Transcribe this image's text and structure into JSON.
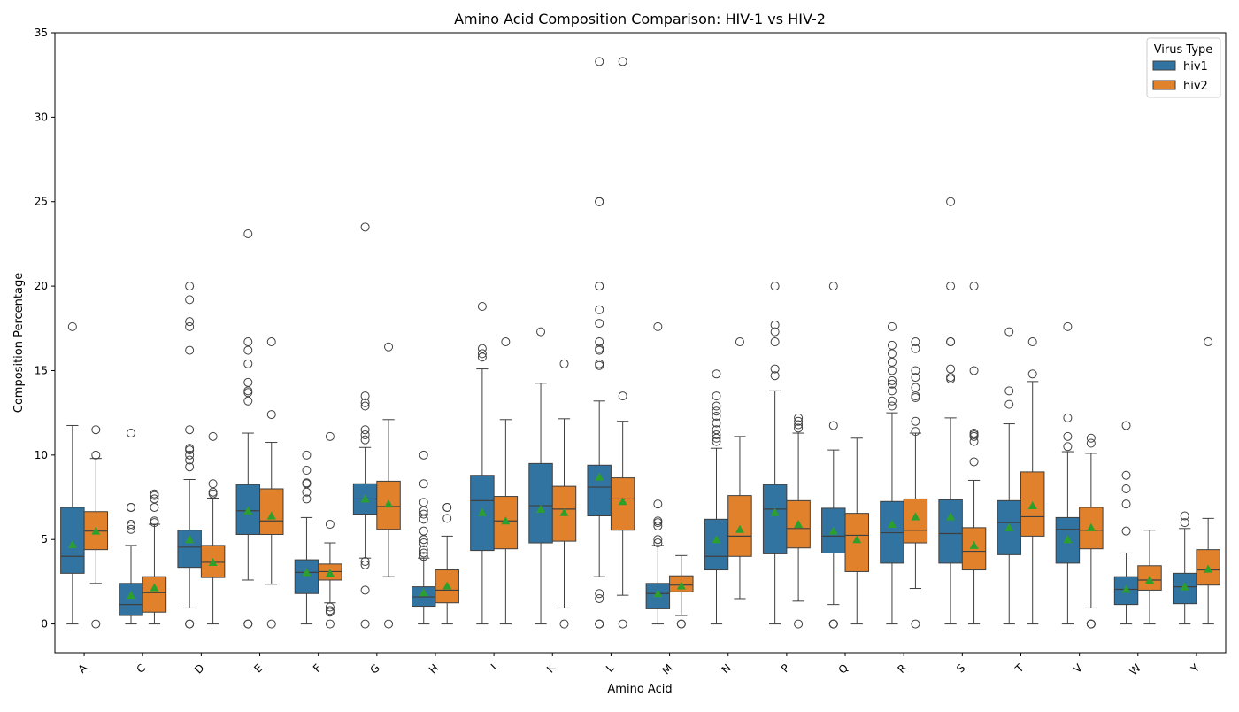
{
  "chart_data": {
    "type": "box",
    "title": "Amino Acid Composition Comparison: HIV-1 vs HIV-2",
    "xlabel": "Amino Acid",
    "ylabel": "Composition Percentage",
    "ylim": [
      -1.7,
      35
    ],
    "yticks": [
      0,
      5,
      10,
      15,
      20,
      25,
      30,
      35
    ],
    "grid": false,
    "legend": {
      "title": "Virus Type",
      "placement": "top-right"
    },
    "mean_marker": {
      "shape": "triangle",
      "color": "#2ca02c"
    },
    "stat_order": [
      "whisker_low",
      "q1",
      "median",
      "q3",
      "whisker_high",
      "mean",
      "outliers"
    ],
    "series": [
      {
        "name": "hiv1",
        "color": "#3274a1"
      },
      {
        "name": "hiv2",
        "color": "#e1812c"
      }
    ],
    "categories": [
      "A",
      "C",
      "D",
      "E",
      "F",
      "G",
      "H",
      "I",
      "K",
      "L",
      "M",
      "N",
      "P",
      "Q",
      "R",
      "S",
      "T",
      "V",
      "W",
      "Y"
    ],
    "stats": {
      "A": [
        [
          0,
          3.0,
          4.0,
          6.9,
          11.75,
          4.7,
          [
            17.6
          ]
        ],
        [
          2.4,
          4.4,
          5.5,
          6.65,
          9.8,
          5.5,
          [
            0,
            10.0,
            11.5
          ]
        ]
      ],
      "C": [
        [
          0,
          0.5,
          1.15,
          2.4,
          4.65,
          1.7,
          [
            5.6,
            5.8,
            5.9,
            6.9,
            6.9,
            11.3
          ]
        ],
        [
          0,
          0.7,
          1.85,
          2.8,
          5.9,
          2.15,
          [
            6.0,
            6.1,
            6.9,
            7.4,
            7.6,
            7.7
          ]
        ]
      ],
      "D": [
        [
          0.95,
          3.35,
          4.55,
          5.55,
          8.55,
          5.0,
          [
            0,
            0,
            9.3,
            9.7,
            10.0,
            10.3,
            10.4,
            11.5,
            16.2,
            17.6,
            17.9,
            19.2,
            20.0
          ]
        ],
        [
          0,
          2.75,
          3.65,
          4.65,
          7.45,
          3.65,
          [
            7.7,
            7.8,
            8.3,
            11.1
          ]
        ]
      ],
      "E": [
        [
          2.6,
          5.3,
          6.7,
          8.25,
          11.3,
          6.7,
          [
            0,
            0,
            13.2,
            13.7,
            13.8,
            14.3,
            15.4,
            16.2,
            16.7,
            23.1
          ]
        ],
        [
          2.35,
          5.3,
          6.1,
          8.0,
          10.75,
          6.4,
          [
            0,
            12.4,
            16.7
          ]
        ]
      ],
      "F": [
        [
          0,
          1.8,
          3.05,
          3.8,
          6.3,
          3.05,
          [
            7.4,
            7.8,
            8.3,
            8.35,
            9.1,
            10.0
          ]
        ],
        [
          1.25,
          2.6,
          3.1,
          3.55,
          4.8,
          3.0,
          [
            0,
            0.7,
            0.8,
            1.0,
            5.9,
            11.1
          ]
        ]
      ],
      "G": [
        [
          3.9,
          6.5,
          7.4,
          8.3,
          10.45,
          7.4,
          [
            0,
            2.0,
            3.5,
            3.7,
            10.9,
            11.2,
            11.5,
            12.9,
            13.1,
            13.5,
            23.5
          ]
        ],
        [
          2.8,
          5.6,
          6.95,
          8.45,
          12.1,
          7.1,
          [
            0,
            16.4
          ]
        ]
      ],
      "H": [
        [
          0,
          1.05,
          1.6,
          2.2,
          3.9,
          1.85,
          [
            4.0,
            4.2,
            4.4,
            4.8,
            5.0,
            5.5,
            6.2,
            6.5,
            6.7,
            7.2,
            8.3,
            10.0
          ]
        ],
        [
          0,
          1.25,
          2.0,
          3.2,
          5.2,
          2.25,
          [
            6.25,
            6.9,
            6.9
          ]
        ]
      ],
      "I": [
        [
          0,
          4.35,
          7.3,
          8.8,
          15.1,
          6.6,
          [
            15.8,
            16.0,
            16.3,
            18.8
          ]
        ],
        [
          0,
          4.45,
          6.1,
          7.55,
          12.1,
          6.1,
          [
            16.7
          ]
        ]
      ],
      "K": [
        [
          0,
          4.8,
          7.0,
          9.5,
          14.25,
          6.8,
          [
            17.3
          ]
        ],
        [
          0.95,
          4.9,
          6.8,
          8.15,
          12.15,
          6.6,
          [
            0,
            15.4
          ]
        ]
      ],
      "L": [
        [
          2.8,
          6.4,
          8.1,
          9.4,
          13.2,
          8.7,
          [
            0,
            0,
            0,
            1.5,
            1.8,
            15.3,
            15.4,
            16.2,
            16.3,
            16.7,
            17.8,
            18.6,
            20.0,
            20.0,
            25.0,
            25.0,
            25.0,
            33.3
          ]
        ],
        [
          1.7,
          5.55,
          7.4,
          8.65,
          12.0,
          7.25,
          [
            0,
            13.5,
            33.3
          ]
        ]
      ],
      "M": [
        [
          0,
          0.9,
          1.8,
          2.4,
          4.65,
          1.8,
          [
            4.8,
            5.0,
            5.8,
            6.0,
            6.1,
            7.1,
            17.6
          ]
        ],
        [
          0.5,
          1.9,
          2.3,
          2.85,
          4.05,
          2.25,
          [
            0,
            0
          ]
        ]
      ],
      "N": [
        [
          0,
          3.2,
          4.0,
          6.2,
          10.4,
          5.0,
          [
            10.8,
            11.0,
            11.2,
            11.5,
            11.9,
            12.3,
            12.6,
            12.9,
            13.5,
            14.8
          ]
        ],
        [
          1.5,
          4.0,
          5.2,
          7.6,
          11.1,
          5.6,
          [
            16.7
          ]
        ]
      ],
      "P": [
        [
          0,
          4.15,
          6.8,
          8.25,
          13.8,
          6.6,
          [
            14.7,
            15.1,
            16.7,
            17.3,
            17.7,
            20.0
          ]
        ],
        [
          1.35,
          4.5,
          5.65,
          7.3,
          11.3,
          5.9,
          [
            0,
            11.6,
            11.8,
            12.0,
            12.2
          ]
        ]
      ],
      "Q": [
        [
          1.15,
          4.2,
          5.2,
          6.85,
          10.3,
          5.5,
          [
            0,
            0,
            0,
            11.75,
            20.0
          ]
        ],
        [
          0,
          3.1,
          5.25,
          6.55,
          11.0,
          5.0,
          []
        ]
      ],
      "R": [
        [
          0,
          3.6,
          5.4,
          7.25,
          12.5,
          5.9,
          [
            12.9,
            13.2,
            13.8,
            14.2,
            14.4,
            15.0,
            15.5,
            16.0,
            16.5,
            17.6
          ]
        ],
        [
          2.1,
          4.8,
          5.55,
          7.4,
          11.3,
          6.35,
          [
            0,
            11.4,
            12.0,
            13.4,
            13.5,
            14.0,
            14.6,
            15.0,
            16.3,
            16.7
          ]
        ]
      ],
      "S": [
        [
          0,
          3.6,
          5.35,
          7.35,
          12.2,
          6.35,
          [
            14.5,
            14.6,
            15.1,
            16.7,
            16.7,
            20.0,
            25.0
          ]
        ],
        [
          0,
          3.2,
          4.3,
          5.7,
          8.5,
          4.65,
          [
            9.6,
            10.8,
            11.1,
            11.2,
            11.3,
            15.0,
            20.0
          ]
        ]
      ],
      "T": [
        [
          0,
          4.1,
          6.0,
          7.3,
          11.85,
          5.7,
          [
            13.0,
            13.8,
            17.3
          ]
        ],
        [
          0,
          5.2,
          6.35,
          9.0,
          14.35,
          7.0,
          [
            14.8,
            16.7
          ]
        ]
      ],
      "V": [
        [
          0,
          3.6,
          5.6,
          6.3,
          10.2,
          5.0,
          [
            10.5,
            11.1,
            12.2,
            17.6
          ]
        ],
        [
          0.95,
          4.45,
          5.55,
          6.9,
          10.1,
          5.7,
          [
            0,
            0,
            0,
            10.7,
            11.0
          ]
        ]
      ],
      "W": [
        [
          0,
          1.15,
          2.05,
          2.8,
          4.2,
          2.05,
          [
            5.5,
            7.1,
            8.0,
            8.8,
            11.75
          ]
        ],
        [
          0,
          2.0,
          2.6,
          3.45,
          5.55,
          2.6,
          []
        ]
      ],
      "Y": [
        [
          0,
          1.2,
          2.2,
          3.0,
          5.65,
          2.2,
          [
            6.0,
            6.4
          ]
        ],
        [
          0,
          2.3,
          3.2,
          4.4,
          6.25,
          3.25,
          [
            16.7
          ]
        ]
      ]
    }
  }
}
